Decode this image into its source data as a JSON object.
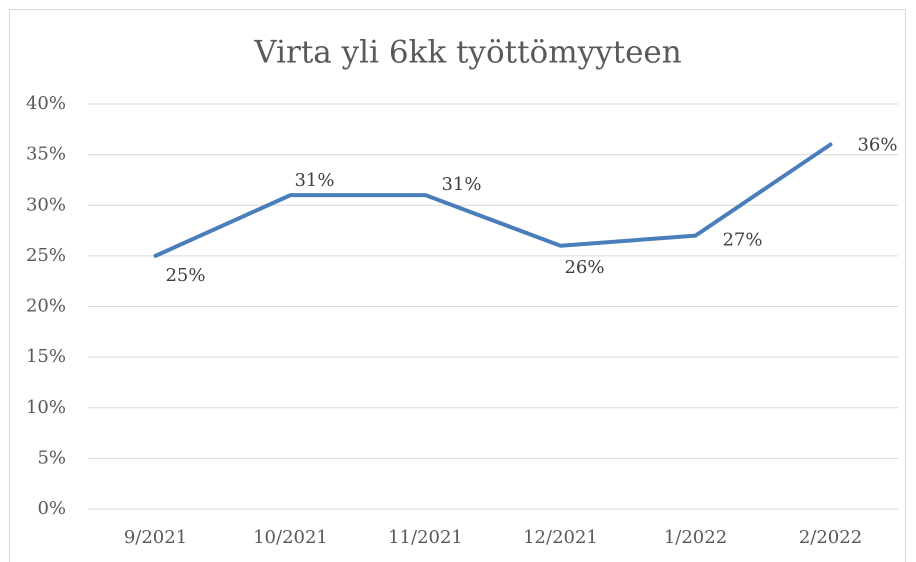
{
  "chart_data": {
    "type": "line",
    "title": "Virta yli 6kk työttömyyteen",
    "categories": [
      "9/2021",
      "10/2021",
      "11/2021",
      "12/2021",
      "1/2022",
      "2/2022"
    ],
    "series": [
      {
        "name": "Virta yli 6kk työttömyyteen",
        "color": "#4a7ebb",
        "values": [
          25,
          31,
          31,
          26,
          27,
          36
        ],
        "value_labels": [
          "25%",
          "31%",
          "31%",
          "26%",
          "27%",
          "36%"
        ]
      }
    ],
    "ylim": [
      0,
      40
    ],
    "yticks": [
      {
        "value": 0,
        "label": "0%"
      },
      {
        "value": 5,
        "label": "5%"
      },
      {
        "value": 10,
        "label": "10%"
      },
      {
        "value": 15,
        "label": "15%"
      },
      {
        "value": 20,
        "label": "20%"
      },
      {
        "value": 25,
        "label": "25%"
      },
      {
        "value": 30,
        "label": "30%"
      },
      {
        "value": 35,
        "label": "35%"
      },
      {
        "value": 40,
        "label": "40%"
      }
    ],
    "grid": true
  }
}
